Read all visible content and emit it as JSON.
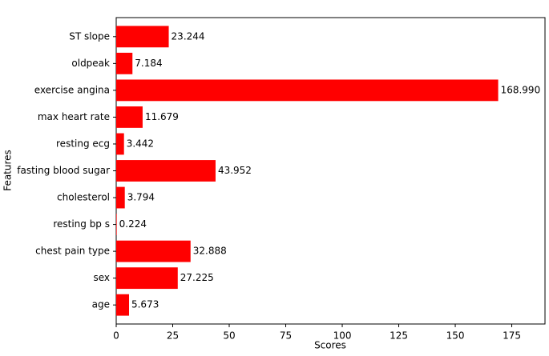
{
  "chart_data": {
    "type": "barh",
    "xlabel": "Scores",
    "ylabel": "Features",
    "categories": [
      "age",
      "sex",
      "chest pain type",
      "resting bp s",
      "cholesterol",
      "fasting blood sugar",
      "resting ecg",
      "max heart rate",
      "exercise angina",
      "oldpeak",
      "ST slope"
    ],
    "values": [
      5.673,
      27.225,
      32.888,
      0.224,
      3.794,
      43.952,
      3.442,
      11.679,
      168.99,
      7.184,
      23.244
    ],
    "value_labels": [
      "5.673",
      "27.225",
      "32.888",
      "0.224",
      "3.794",
      "43.952",
      "3.442",
      "11.679",
      "168.990",
      "7.184",
      "23.244"
    ],
    "color": "#ff0000",
    "xlim": [
      0,
      189.7
    ],
    "xticks": [
      0,
      25,
      50,
      75,
      100,
      125,
      150,
      175
    ]
  }
}
